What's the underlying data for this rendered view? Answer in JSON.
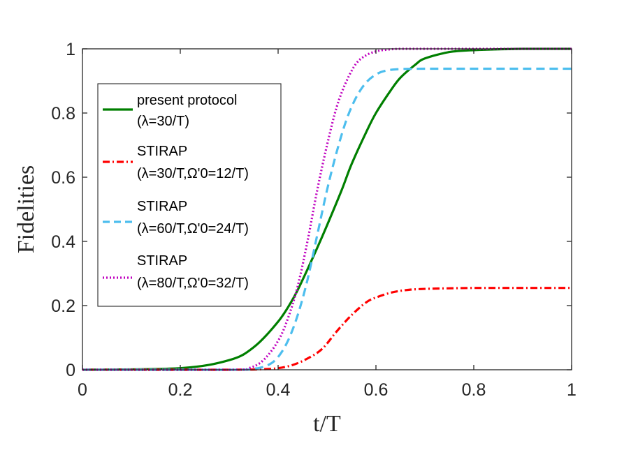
{
  "chart_data": {
    "type": "line",
    "title": "",
    "xlabel": "t/T",
    "ylabel": "Fidelities",
    "xlim": [
      0,
      1
    ],
    "ylim": [
      0,
      1
    ],
    "xticks": [
      "0",
      "0.2",
      "0.4",
      "0.6",
      "0.8",
      "1"
    ],
    "yticks": [
      "0",
      "0.2",
      "0.4",
      "0.6",
      "0.8",
      "1"
    ],
    "grid": false,
    "legend_position": "left",
    "series": [
      {
        "name": "present protocol",
        "legend_lines": [
          "present protocol",
          "(λ=30/T)"
        ],
        "color": "#007f00",
        "style": "solid",
        "x": [
          0,
          0.2,
          0.3,
          0.35,
          0.4,
          0.43,
          0.45,
          0.48,
          0.5,
          0.53,
          0.55,
          0.58,
          0.6,
          0.63,
          0.65,
          0.68,
          0.7,
          0.75,
          0.8,
          0.9,
          1.0
        ],
        "values": [
          0,
          0.005,
          0.03,
          0.07,
          0.15,
          0.22,
          0.28,
          0.38,
          0.45,
          0.56,
          0.64,
          0.74,
          0.8,
          0.87,
          0.91,
          0.95,
          0.97,
          0.99,
          0.996,
          1.0,
          1.0
        ]
      },
      {
        "name": "STIRAP",
        "legend_lines": [
          "STIRAP",
          "(λ=30/T,Ω'0=12/T)"
        ],
        "color": "#ff0000",
        "style": "dashdot",
        "x": [
          0,
          0.3,
          0.37,
          0.4,
          0.43,
          0.46,
          0.49,
          0.52,
          0.55,
          0.58,
          0.6,
          0.63,
          0.66,
          0.7,
          0.8,
          0.9,
          1.0
        ],
        "values": [
          0,
          0,
          0.002,
          0.005,
          0.015,
          0.035,
          0.065,
          0.12,
          0.17,
          0.21,
          0.225,
          0.24,
          0.248,
          0.252,
          0.255,
          0.255,
          0.255
        ]
      },
      {
        "name": "STIRAP",
        "legend_lines": [
          "STIRAP",
          "(λ=60/T,Ω'0=24/T)"
        ],
        "color": "#4dbeee",
        "style": "dashed",
        "x": [
          0,
          0.3,
          0.35,
          0.38,
          0.4,
          0.42,
          0.44,
          0.46,
          0.48,
          0.5,
          0.52,
          0.54,
          0.56,
          0.58,
          0.6,
          0.62,
          0.65,
          0.7,
          0.8,
          0.9,
          1.0
        ],
        "values": [
          0,
          0,
          0.003,
          0.015,
          0.04,
          0.09,
          0.17,
          0.28,
          0.42,
          0.56,
          0.68,
          0.78,
          0.85,
          0.895,
          0.92,
          0.932,
          0.937,
          0.938,
          0.938,
          0.938,
          0.938
        ]
      },
      {
        "name": "STIRAP",
        "legend_lines": [
          "STIRAP",
          "(λ=80/T,Ω'0=32/T)"
        ],
        "color": "#bf00bf",
        "style": "dotted",
        "x": [
          0,
          0.3,
          0.34,
          0.37,
          0.4,
          0.42,
          0.44,
          0.46,
          0.48,
          0.5,
          0.52,
          0.54,
          0.56,
          0.58,
          0.6,
          0.62,
          0.65,
          0.7,
          0.8,
          0.9,
          1.0
        ],
        "values": [
          0,
          0,
          0.005,
          0.03,
          0.09,
          0.16,
          0.26,
          0.4,
          0.56,
          0.7,
          0.82,
          0.9,
          0.955,
          0.98,
          0.992,
          0.997,
          1.0,
          1.0,
          1.0,
          1.0,
          1.0
        ]
      }
    ]
  }
}
